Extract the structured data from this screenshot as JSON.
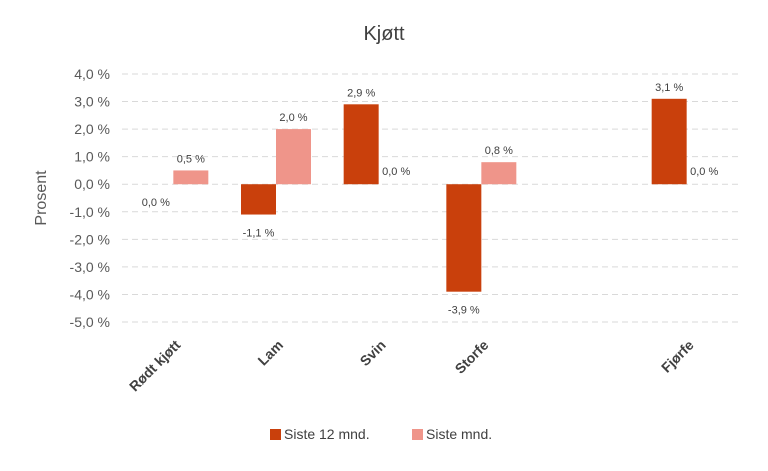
{
  "chart_data": {
    "type": "bar",
    "title": "Kjøtt",
    "ylabel": "Prosent",
    "xlabel": "",
    "ylim": [
      -5,
      4
    ],
    "yticks": [
      "4,0 %",
      "3,0 %",
      "2,0 %",
      "1,0 %",
      "0,0 %",
      "-1,0 %",
      "-2,0 %",
      "-3,0 %",
      "-4,0 %",
      "-5,0 %"
    ],
    "categories": [
      "Rødt kjøtt",
      "Lam",
      "Svin",
      "Storfe",
      "",
      "Fjørfe"
    ],
    "series": [
      {
        "name": "Siste 12 mnd.",
        "color": "#C9400C",
        "values": [
          0.0,
          -1.1,
          2.9,
          -3.9,
          null,
          3.1
        ],
        "labels": [
          "0,0 %",
          "-1,1 %",
          "2,9 %",
          "-3,9 %",
          "",
          "3,1 %"
        ]
      },
      {
        "name": "Siste mnd.",
        "color": "#EF958A",
        "values": [
          0.5,
          2.0,
          0.0,
          0.8,
          null,
          0.0
        ],
        "labels": [
          "0,5 %",
          "2,0 %",
          "0,0 %",
          "0,8 %",
          "",
          "0,0 %"
        ]
      }
    ],
    "grid": true,
    "legend": "bottom"
  }
}
